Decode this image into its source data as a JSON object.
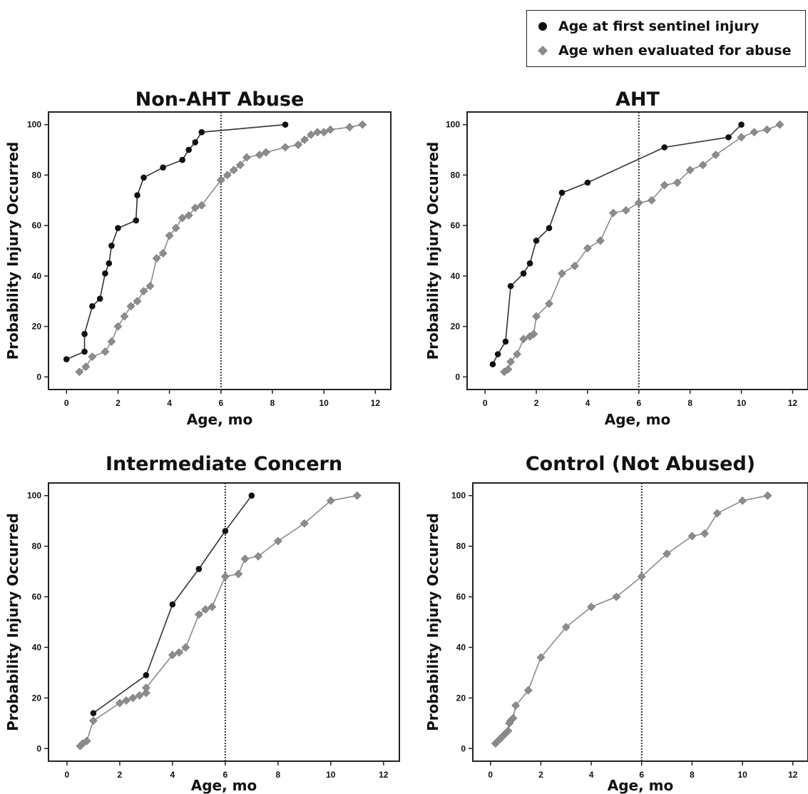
{
  "legend": {
    "items": [
      {
        "label": "Age at first sentinel injury",
        "marker": "circle",
        "color": "#111111"
      },
      {
        "label": "Age when evaluated for abuse",
        "marker": "diamond",
        "color": "#8c8c8c"
      }
    ]
  },
  "colors": {
    "sentinel_marker": "#111111",
    "sentinel_line": "#333333",
    "evaluated_marker": "#8c8c8c",
    "evaluated_line": "#8c8c8c",
    "reference_line": "#333333"
  },
  "chart_data": [
    {
      "type": "line",
      "title": "Non-AHT Abuse",
      "xlabel": "Age, mo",
      "ylabel": "Probability Injury Occurred",
      "xlim": [
        -0.7,
        12.6
      ],
      "ylim": [
        -5,
        105
      ],
      "xticks": [
        0,
        2,
        4,
        6,
        8,
        10,
        12
      ],
      "yticks": [
        0,
        20,
        40,
        60,
        80,
        100
      ],
      "reference_line_x": 6,
      "series": [
        {
          "name": "Age at first sentinel injury",
          "marker": "circle",
          "x": [
            0,
            0.7,
            0.7,
            1,
            1.3,
            1.5,
            1.65,
            1.75,
            2,
            2.7,
            2.75,
            3,
            3.75,
            4.5,
            4.75,
            5,
            5.25,
            8.5
          ],
          "y": [
            7,
            10,
            17,
            28,
            31,
            41,
            45,
            52,
            59,
            62,
            72,
            79,
            83,
            86,
            90,
            93,
            97,
            100
          ]
        },
        {
          "name": "Age when evaluated for abuse",
          "marker": "diamond",
          "x": [
            0.5,
            0.75,
            1,
            1.5,
            1.75,
            2,
            2.25,
            2.5,
            2.75,
            3,
            3.25,
            3.5,
            3.75,
            4,
            4.25,
            4.5,
            4.75,
            5,
            5.25,
            6,
            6.25,
            6.5,
            6.75,
            7,
            7.5,
            7.75,
            8.5,
            9,
            9.25,
            9.5,
            9.75,
            10,
            10.25,
            11,
            11.5
          ],
          "y": [
            2,
            4,
            8,
            10,
            14,
            20,
            24,
            28,
            30,
            34,
            36,
            47,
            49,
            56,
            59,
            63,
            64,
            67,
            68,
            78,
            80,
            82,
            84,
            87,
            88,
            89,
            91,
            92,
            94,
            96,
            97,
            97,
            98,
            99,
            100
          ]
        }
      ]
    },
    {
      "type": "line",
      "title": "AHT",
      "xlabel": "Age, mo",
      "ylabel": "Probability Injury Occurred",
      "xlim": [
        -0.7,
        12.6
      ],
      "ylim": [
        -5,
        105
      ],
      "xticks": [
        0,
        2,
        4,
        6,
        8,
        10,
        12
      ],
      "yticks": [
        0,
        20,
        40,
        60,
        80,
        100
      ],
      "reference_line_x": 6,
      "series": [
        {
          "name": "Age at first sentinel injury",
          "marker": "circle",
          "x": [
            0.3,
            0.5,
            0.8,
            1,
            1.5,
            1.75,
            2,
            2.5,
            3,
            4,
            7,
            9.5,
            10
          ],
          "y": [
            5,
            9,
            14,
            36,
            41,
            45,
            54,
            59,
            73,
            77,
            91,
            95,
            100
          ]
        },
        {
          "name": "Age when evaluated for abuse",
          "marker": "diamond",
          "x": [
            0.75,
            0.9,
            1,
            1.25,
            1.5,
            1.75,
            1.9,
            2,
            2.5,
            3,
            3.5,
            4,
            4.5,
            5,
            5.5,
            6,
            6.5,
            7,
            7.5,
            8,
            8.5,
            9,
            10,
            10.5,
            11,
            11.5
          ],
          "y": [
            2,
            3,
            6,
            9,
            15,
            16,
            17,
            24,
            29,
            41,
            44,
            51,
            54,
            65,
            66,
            69,
            70,
            76,
            77,
            82,
            84,
            88,
            95,
            97,
            98,
            100
          ]
        }
      ]
    },
    {
      "type": "line",
      "title": "Intermediate Concern",
      "xlabel": "Age, mo",
      "ylabel": "Probability Injury Occurred",
      "xlim": [
        -0.7,
        12.6
      ],
      "ylim": [
        -5,
        105
      ],
      "xticks": [
        0,
        2,
        4,
        6,
        8,
        10,
        12
      ],
      "yticks": [
        0,
        20,
        40,
        60,
        80,
        100
      ],
      "reference_line_x": 6,
      "series": [
        {
          "name": "Age at first sentinel injury",
          "marker": "circle",
          "x": [
            1,
            3,
            4,
            5,
            6,
            7
          ],
          "y": [
            14,
            29,
            57,
            71,
            86,
            100
          ]
        },
        {
          "name": "Age when evaluated for abuse",
          "marker": "diamond",
          "x": [
            0.5,
            0.6,
            0.75,
            1,
            2,
            2.25,
            2.5,
            2.75,
            3,
            3,
            4,
            4.25,
            4.5,
            5,
            5.25,
            5.5,
            6,
            6.5,
            6.75,
            7.25,
            8,
            9,
            10,
            11
          ],
          "y": [
            1,
            2,
            3,
            11,
            18,
            19,
            20,
            21,
            22,
            24,
            37,
            38,
            40,
            53,
            55,
            56,
            68,
            69,
            75,
            76,
            82,
            89,
            98,
            100
          ]
        }
      ]
    },
    {
      "type": "line",
      "title": "Control (Not Abused)",
      "xlabel": "Age, mo",
      "ylabel": "Probability Injury Occurred",
      "xlim": [
        -0.7,
        12.6
      ],
      "ylim": [
        -5,
        105
      ],
      "xticks": [
        0,
        2,
        4,
        6,
        8,
        10,
        12
      ],
      "yticks": [
        0,
        20,
        40,
        60,
        80,
        100
      ],
      "reference_line_x": 6,
      "series": [
        {
          "name": "Age when evaluated for abuse",
          "marker": "diamond",
          "x": [
            0.2,
            0.3,
            0.4,
            0.5,
            0.6,
            0.7,
            0.75,
            0.8,
            0.9,
            1,
            1.5,
            2,
            3,
            4,
            5,
            6,
            7,
            8,
            8.5,
            9,
            10,
            11
          ],
          "y": [
            2,
            3,
            4,
            5,
            6,
            7,
            10,
            11,
            12,
            17,
            23,
            36,
            48,
            56,
            60,
            68,
            77,
            84,
            85,
            93,
            98,
            100
          ]
        }
      ]
    }
  ]
}
